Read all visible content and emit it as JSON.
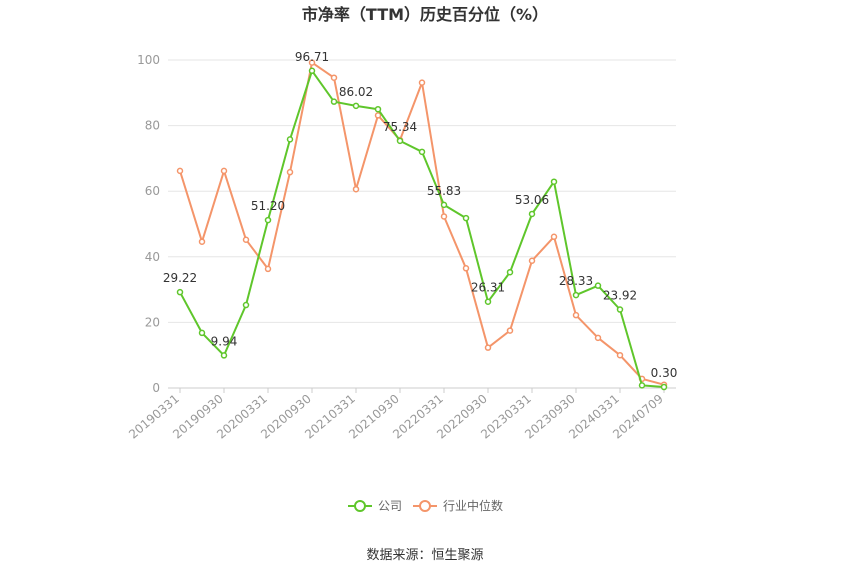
{
  "chart_data": {
    "type": "line",
    "title": "市净率（TTM）历史百分位（%）",
    "xlabel": "",
    "ylabel": "",
    "ylim": [
      0,
      100
    ],
    "yticks": [
      "0",
      "20",
      "40",
      "60",
      "80",
      "100"
    ],
    "grid": true,
    "legend_position": "bottom",
    "x": [
      "20190331",
      "20190630",
      "20190930",
      "20191231",
      "20200331",
      "20200630",
      "20200930",
      "20201231",
      "20210331",
      "20210630",
      "20210930",
      "20211231",
      "20220331",
      "20220630",
      "20220930",
      "20221231",
      "20230331",
      "20230630",
      "20230930",
      "20231231",
      "20240331",
      "20240630",
      "20240709"
    ],
    "tick_labels": [
      "20190331",
      "20190930",
      "20200331",
      "20200930",
      "20210331",
      "20210930",
      "20220331",
      "20220930",
      "20230331",
      "20230930",
      "20240331",
      "20240709"
    ],
    "series": [
      {
        "name": "公司",
        "color": "#5fc62b",
        "values": [
          29.22,
          16.8,
          9.94,
          25.3,
          51.2,
          75.8,
          96.71,
          87.3,
          86.02,
          85.0,
          75.34,
          72.0,
          55.83,
          51.8,
          26.31,
          35.3,
          53.06,
          62.9,
          28.33,
          31.2,
          23.92,
          0.8,
          0.3
        ],
        "labels": [
          "29.22",
          "",
          "9.94",
          "",
          "51.20",
          "",
          "96.71",
          "",
          "86.02",
          "",
          "75.34",
          "",
          "55.83",
          "",
          "26.31",
          "",
          "53.06",
          "",
          "28.33",
          "",
          "23.92",
          "",
          "0.30"
        ]
      },
      {
        "name": "行业中位数",
        "color": "#f4956a",
        "values": [
          66.2,
          44.6,
          66.2,
          45.2,
          36.3,
          65.8,
          99.2,
          94.6,
          60.6,
          83.1,
          75.6,
          93.1,
          52.3,
          36.5,
          12.3,
          17.5,
          38.8,
          46.1,
          22.2,
          15.3,
          10.0,
          2.8,
          1.0
        ]
      }
    ],
    "source": "数据来源：恒生聚源"
  }
}
